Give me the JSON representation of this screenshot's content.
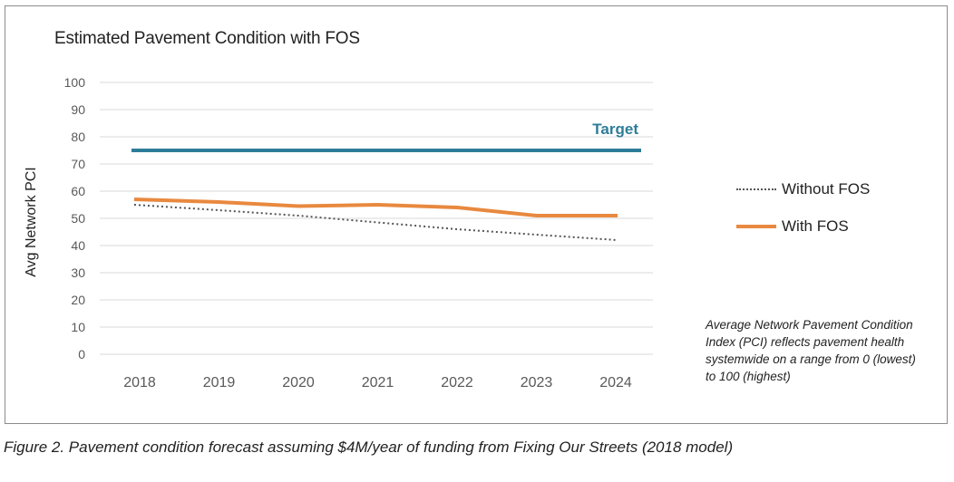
{
  "chart_data": {
    "type": "line",
    "title": "Estimated Pavement Condition with FOS",
    "ylabel": "Avg Network PCI",
    "xlabel": "",
    "categories": [
      "2018",
      "2019",
      "2020",
      "2021",
      "2022",
      "2023",
      "2024"
    ],
    "yticks": [
      "0",
      "10",
      "20",
      "30",
      "40",
      "50",
      "60",
      "70",
      "80",
      "90",
      "100"
    ],
    "ylim": [
      0,
      100
    ],
    "grid": true,
    "legend_position": "right",
    "series": [
      {
        "name": "Without FOS",
        "style": "dotted",
        "color": "#555555",
        "values": [
          55,
          53,
          51,
          48.5,
          46,
          44,
          42
        ]
      },
      {
        "name": "With FOS",
        "style": "solid",
        "color": "#e8893f",
        "values": [
          57,
          56,
          54.5,
          55,
          54,
          51,
          51
        ]
      }
    ],
    "target": {
      "label": "Target",
      "value": 75,
      "color": "#2e7d99"
    }
  },
  "note": "Average Network Pavement Condition Index (PCI) reflects pavement health systemwide on a range from 0 (lowest) to 100 (highest)",
  "caption": "Figure 2. Pavement condition forecast assuming $4M/year of funding from Fixing Our Streets (2018 model)"
}
